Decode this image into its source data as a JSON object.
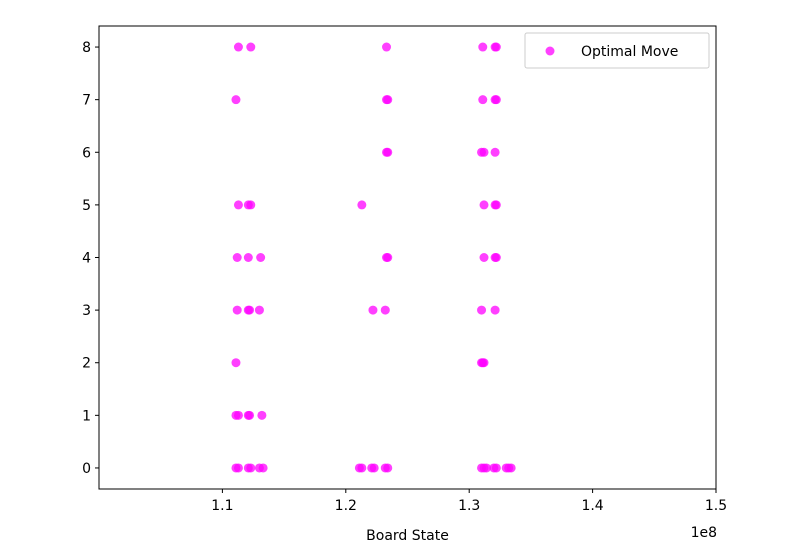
{
  "chart_data": {
    "type": "scatter",
    "title": "",
    "xlabel": "Board State",
    "ylabel": "",
    "x_offset_label": "1e8",
    "xlim": [
      100000000,
      150000000
    ],
    "ylim": [
      -0.4,
      8.4
    ],
    "x_ticks": [
      110000000,
      120000000,
      130000000,
      140000000,
      150000000
    ],
    "x_tick_labels": [
      "1.1",
      "1.2",
      "1.3",
      "1.4",
      "1.5"
    ],
    "y_ticks": [
      0,
      1,
      2,
      3,
      4,
      5,
      6,
      7,
      8
    ],
    "y_tick_labels": [
      "0",
      "1",
      "2",
      "3",
      "4",
      "5",
      "6",
      "7",
      "8"
    ],
    "grid": false,
    "legend_position": "top-right",
    "series": [
      {
        "name": "Optimal Move",
        "color": "#ff00ff",
        "points": [
          [
            111300000,
            8
          ],
          [
            112300000,
            8
          ],
          [
            123300000,
            8
          ],
          [
            131100000,
            8
          ],
          [
            132100000,
            8
          ],
          [
            132200000,
            8
          ],
          [
            111100000,
            7
          ],
          [
            123300000,
            7
          ],
          [
            123400000,
            7
          ],
          [
            131100000,
            7
          ],
          [
            132100000,
            7
          ],
          [
            132200000,
            7
          ],
          [
            123300000,
            6
          ],
          [
            123400000,
            6
          ],
          [
            131000000,
            6
          ],
          [
            131200000,
            6
          ],
          [
            132100000,
            6
          ],
          [
            111300000,
            5
          ],
          [
            112100000,
            5
          ],
          [
            112300000,
            5
          ],
          [
            121300000,
            5
          ],
          [
            131200000,
            5
          ],
          [
            132100000,
            5
          ],
          [
            132200000,
            5
          ],
          [
            111200000,
            4
          ],
          [
            112100000,
            4
          ],
          [
            113100000,
            4
          ],
          [
            123300000,
            4
          ],
          [
            123400000,
            4
          ],
          [
            131200000,
            4
          ],
          [
            132100000,
            4
          ],
          [
            132200000,
            4
          ],
          [
            111200000,
            3
          ],
          [
            112100000,
            3
          ],
          [
            112200000,
            3
          ],
          [
            113000000,
            3
          ],
          [
            122200000,
            3
          ],
          [
            123200000,
            3
          ],
          [
            131000000,
            3
          ],
          [
            132100000,
            3
          ],
          [
            111100000,
            2
          ],
          [
            131000000,
            2
          ],
          [
            131100000,
            2
          ],
          [
            131200000,
            2
          ],
          [
            111100000,
            1
          ],
          [
            111300000,
            1
          ],
          [
            112100000,
            1
          ],
          [
            112200000,
            1
          ],
          [
            113200000,
            1
          ],
          [
            111100000,
            0
          ],
          [
            111300000,
            0
          ],
          [
            112100000,
            0
          ],
          [
            112300000,
            0
          ],
          [
            113000000,
            0
          ],
          [
            113300000,
            0
          ],
          [
            121100000,
            0
          ],
          [
            121300000,
            0
          ],
          [
            122100000,
            0
          ],
          [
            122300000,
            0
          ],
          [
            123200000,
            0
          ],
          [
            123400000,
            0
          ],
          [
            131000000,
            0
          ],
          [
            131200000,
            0
          ],
          [
            131400000,
            0
          ],
          [
            132000000,
            0
          ],
          [
            132200000,
            0
          ],
          [
            133000000,
            0
          ],
          [
            133200000,
            0
          ],
          [
            133400000,
            0
          ]
        ]
      }
    ]
  }
}
